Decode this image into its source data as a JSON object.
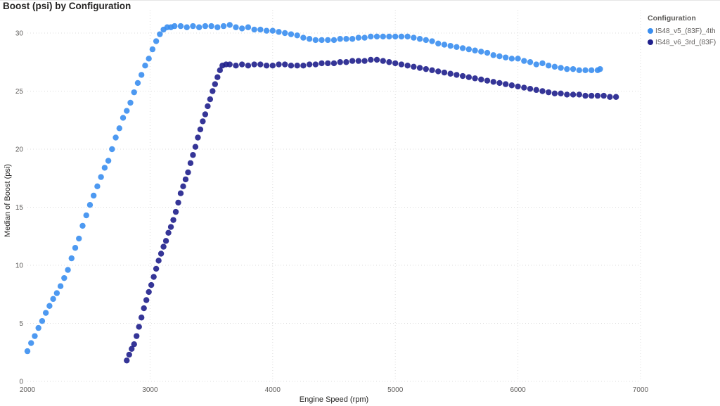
{
  "chart_data": {
    "type": "scatter",
    "title": "Boost (psi) by Configuration",
    "xlabel": "Engine Speed (rpm)",
    "ylabel": "Median of Boost (psi)",
    "xlim": [
      2000,
      7000
    ],
    "ylim": [
      0,
      32
    ],
    "xticks": [
      2000,
      3000,
      4000,
      5000,
      6000,
      7000
    ],
    "yticks": [
      0,
      5,
      10,
      15,
      20,
      25,
      30
    ],
    "grid": true,
    "legend_title": "Configuration",
    "legend_position": "top-right",
    "series": [
      {
        "name": "IS48_v5_(83F)_4th",
        "color": "#3a8ef0",
        "points": [
          [
            2000,
            2.6
          ],
          [
            2030,
            3.3
          ],
          [
            2060,
            3.9
          ],
          [
            2090,
            4.6
          ],
          [
            2120,
            5.2
          ],
          [
            2150,
            5.9
          ],
          [
            2180,
            6.5
          ],
          [
            2210,
            7.1
          ],
          [
            2240,
            7.6
          ],
          [
            2270,
            8.2
          ],
          [
            2300,
            8.9
          ],
          [
            2330,
            9.6
          ],
          [
            2360,
            10.6
          ],
          [
            2390,
            11.5
          ],
          [
            2420,
            12.3
          ],
          [
            2450,
            13.4
          ],
          [
            2480,
            14.3
          ],
          [
            2510,
            15.2
          ],
          [
            2540,
            16.0
          ],
          [
            2570,
            16.8
          ],
          [
            2600,
            17.6
          ],
          [
            2630,
            18.4
          ],
          [
            2660,
            19.0
          ],
          [
            2690,
            20.0
          ],
          [
            2720,
            21.0
          ],
          [
            2750,
            21.8
          ],
          [
            2780,
            22.7
          ],
          [
            2810,
            23.3
          ],
          [
            2840,
            24.0
          ],
          [
            2870,
            24.9
          ],
          [
            2900,
            25.7
          ],
          [
            2930,
            26.4
          ],
          [
            2960,
            27.2
          ],
          [
            2990,
            27.8
          ],
          [
            3020,
            28.6
          ],
          [
            3050,
            29.3
          ],
          [
            3080,
            29.9
          ],
          [
            3110,
            30.3
          ],
          [
            3140,
            30.5
          ],
          [
            3170,
            30.5
          ],
          [
            3200,
            30.6
          ],
          [
            3250,
            30.6
          ],
          [
            3300,
            30.5
          ],
          [
            3350,
            30.6
          ],
          [
            3400,
            30.5
          ],
          [
            3450,
            30.6
          ],
          [
            3500,
            30.6
          ],
          [
            3550,
            30.5
          ],
          [
            3600,
            30.6
          ],
          [
            3650,
            30.7
          ],
          [
            3700,
            30.5
          ],
          [
            3750,
            30.4
          ],
          [
            3800,
            30.5
          ],
          [
            3850,
            30.3
          ],
          [
            3900,
            30.3
          ],
          [
            3950,
            30.2
          ],
          [
            4000,
            30.2
          ],
          [
            4050,
            30.1
          ],
          [
            4100,
            30.0
          ],
          [
            4150,
            29.9
          ],
          [
            4200,
            29.8
          ],
          [
            4250,
            29.6
          ],
          [
            4300,
            29.5
          ],
          [
            4350,
            29.4
          ],
          [
            4400,
            29.4
          ],
          [
            4450,
            29.4
          ],
          [
            4500,
            29.4
          ],
          [
            4550,
            29.5
          ],
          [
            4600,
            29.5
          ],
          [
            4650,
            29.5
          ],
          [
            4700,
            29.6
          ],
          [
            4750,
            29.6
          ],
          [
            4800,
            29.7
          ],
          [
            4850,
            29.7
          ],
          [
            4900,
            29.7
          ],
          [
            4950,
            29.7
          ],
          [
            5000,
            29.7
          ],
          [
            5050,
            29.7
          ],
          [
            5100,
            29.7
          ],
          [
            5150,
            29.6
          ],
          [
            5200,
            29.5
          ],
          [
            5250,
            29.4
          ],
          [
            5300,
            29.3
          ],
          [
            5350,
            29.1
          ],
          [
            5400,
            29.0
          ],
          [
            5450,
            28.9
          ],
          [
            5500,
            28.8
          ],
          [
            5550,
            28.7
          ],
          [
            5600,
            28.6
          ],
          [
            5650,
            28.5
          ],
          [
            5700,
            28.4
          ],
          [
            5750,
            28.3
          ],
          [
            5800,
            28.1
          ],
          [
            5850,
            28.0
          ],
          [
            5900,
            27.9
          ],
          [
            5950,
            27.8
          ],
          [
            6000,
            27.8
          ],
          [
            6050,
            27.6
          ],
          [
            6100,
            27.5
          ],
          [
            6150,
            27.3
          ],
          [
            6200,
            27.4
          ],
          [
            6250,
            27.2
          ],
          [
            6300,
            27.1
          ],
          [
            6350,
            27.0
          ],
          [
            6400,
            26.9
          ],
          [
            6450,
            26.9
          ],
          [
            6500,
            26.8
          ],
          [
            6550,
            26.8
          ],
          [
            6600,
            26.8
          ],
          [
            6650,
            26.8
          ],
          [
            6670,
            26.9
          ]
        ]
      },
      {
        "name": "IS48_v6_3rd_(83F)",
        "color": "#1f1f8c",
        "points": [
          [
            2810,
            1.8
          ],
          [
            2830,
            2.3
          ],
          [
            2850,
            2.8
          ],
          [
            2870,
            3.2
          ],
          [
            2890,
            3.9
          ],
          [
            2910,
            4.7
          ],
          [
            2930,
            5.5
          ],
          [
            2950,
            6.3
          ],
          [
            2970,
            7.0
          ],
          [
            2990,
            7.7
          ],
          [
            3010,
            8.3
          ],
          [
            3030,
            9.0
          ],
          [
            3050,
            9.7
          ],
          [
            3070,
            10.4
          ],
          [
            3090,
            11.0
          ],
          [
            3110,
            11.6
          ],
          [
            3130,
            12.1
          ],
          [
            3150,
            12.8
          ],
          [
            3170,
            13.3
          ],
          [
            3190,
            13.9
          ],
          [
            3210,
            14.6
          ],
          [
            3230,
            15.4
          ],
          [
            3250,
            16.2
          ],
          [
            3270,
            16.8
          ],
          [
            3290,
            17.4
          ],
          [
            3310,
            18.0
          ],
          [
            3330,
            18.8
          ],
          [
            3350,
            19.5
          ],
          [
            3370,
            20.2
          ],
          [
            3390,
            21.0
          ],
          [
            3410,
            21.7
          ],
          [
            3430,
            22.4
          ],
          [
            3450,
            23.0
          ],
          [
            3470,
            23.7
          ],
          [
            3490,
            24.3
          ],
          [
            3510,
            25.0
          ],
          [
            3530,
            25.6
          ],
          [
            3550,
            26.2
          ],
          [
            3570,
            26.8
          ],
          [
            3590,
            27.2
          ],
          [
            3620,
            27.3
          ],
          [
            3650,
            27.3
          ],
          [
            3700,
            27.2
          ],
          [
            3750,
            27.3
          ],
          [
            3800,
            27.2
          ],
          [
            3850,
            27.3
          ],
          [
            3900,
            27.3
          ],
          [
            3950,
            27.2
          ],
          [
            4000,
            27.2
          ],
          [
            4050,
            27.3
          ],
          [
            4100,
            27.3
          ],
          [
            4150,
            27.2
          ],
          [
            4200,
            27.2
          ],
          [
            4250,
            27.2
          ],
          [
            4300,
            27.3
          ],
          [
            4350,
            27.3
          ],
          [
            4400,
            27.4
          ],
          [
            4450,
            27.4
          ],
          [
            4500,
            27.4
          ],
          [
            4550,
            27.5
          ],
          [
            4600,
            27.5
          ],
          [
            4650,
            27.6
          ],
          [
            4700,
            27.6
          ],
          [
            4750,
            27.6
          ],
          [
            4800,
            27.7
          ],
          [
            4850,
            27.7
          ],
          [
            4900,
            27.6
          ],
          [
            4950,
            27.5
          ],
          [
            5000,
            27.4
          ],
          [
            5050,
            27.3
          ],
          [
            5100,
            27.2
          ],
          [
            5150,
            27.1
          ],
          [
            5200,
            27.0
          ],
          [
            5250,
            26.9
          ],
          [
            5300,
            26.8
          ],
          [
            5350,
            26.7
          ],
          [
            5400,
            26.6
          ],
          [
            5450,
            26.5
          ],
          [
            5500,
            26.4
          ],
          [
            5550,
            26.3
          ],
          [
            5600,
            26.2
          ],
          [
            5650,
            26.1
          ],
          [
            5700,
            26.0
          ],
          [
            5750,
            25.9
          ],
          [
            5800,
            25.8
          ],
          [
            5850,
            25.7
          ],
          [
            5900,
            25.6
          ],
          [
            5950,
            25.5
          ],
          [
            6000,
            25.4
          ],
          [
            6050,
            25.3
          ],
          [
            6100,
            25.2
          ],
          [
            6150,
            25.1
          ],
          [
            6200,
            25.0
          ],
          [
            6250,
            24.9
          ],
          [
            6300,
            24.8
          ],
          [
            6350,
            24.8
          ],
          [
            6400,
            24.7
          ],
          [
            6450,
            24.7
          ],
          [
            6500,
            24.7
          ],
          [
            6550,
            24.6
          ],
          [
            6600,
            24.6
          ],
          [
            6650,
            24.6
          ],
          [
            6700,
            24.6
          ],
          [
            6750,
            24.5
          ],
          [
            6800,
            24.5
          ]
        ]
      }
    ]
  }
}
